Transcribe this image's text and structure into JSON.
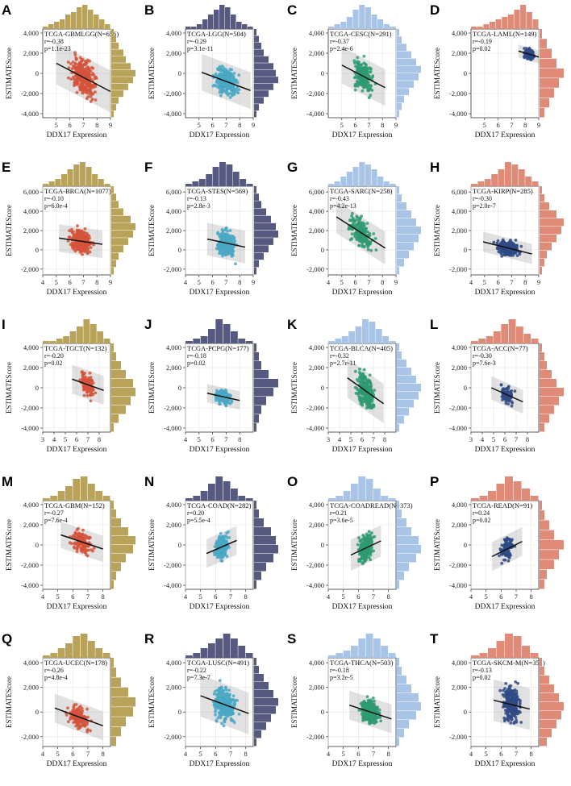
{
  "figure": {
    "xlabel": "DDX17 Expression",
    "ylabel": "ESTIMATEScore"
  },
  "chart_data": [
    {
      "type": "scatter",
      "panel": "A",
      "title": "TCGA-GBMLGG(N=656)",
      "r": "r=-0.38",
      "p": "p=1.1e-23",
      "xlim": [
        4,
        9
      ],
      "xticks": [
        5,
        6,
        7,
        8,
        9
      ],
      "ylim": [
        -4400,
        4400
      ],
      "yticks": [
        -4000,
        -2000,
        0,
        2000,
        4000
      ],
      "x_center": 7,
      "x_spread": 1.0,
      "y_center": -400,
      "y_spread": 1600,
      "slope": -700,
      "n_points": 300,
      "color": "#d4533b",
      "hist_color": "#b9a35a",
      "hist_x": [
        1,
        2,
        3,
        4,
        6,
        7,
        9,
        10,
        8,
        6,
        4,
        2
      ],
      "hist_y": [
        1,
        2,
        3,
        5,
        6,
        8,
        10,
        9,
        7,
        5,
        3,
        2,
        1
      ]
    },
    {
      "type": "scatter",
      "panel": "B",
      "title": "TCGA-LGG(N=504)",
      "r": "r=-0.29",
      "p": "p=3.1e-11",
      "xlim": [
        4,
        9
      ],
      "xticks": [
        5,
        6,
        7,
        8,
        9
      ],
      "ylim": [
        -4400,
        4400
      ],
      "yticks": [
        -4000,
        -2000,
        0,
        2000,
        4000
      ],
      "x_center": 7,
      "x_spread": 0.9,
      "y_center": -800,
      "y_spread": 1400,
      "slope": -500,
      "n_points": 250,
      "color": "#4aa8c4",
      "hist_color": "#575a80",
      "hist_x": [
        1,
        1,
        2,
        4,
        6,
        8,
        10,
        9,
        6,
        3,
        2,
        1
      ],
      "hist_y": [
        1,
        2,
        3,
        4,
        6,
        8,
        9,
        10,
        8,
        6,
        4,
        2,
        1
      ]
    },
    {
      "type": "scatter",
      "panel": "C",
      "title": "TCGA-CESC(N=291)",
      "r": "r=-0.37",
      "p": "p=2.4e-6",
      "xlim": [
        4,
        9
      ],
      "xticks": [
        5,
        6,
        7,
        8,
        9
      ],
      "ylim": [
        -4400,
        4400
      ],
      "yticks": [
        -4000,
        -2000,
        0,
        2000,
        4000
      ],
      "x_center": 6.6,
      "x_spread": 0.8,
      "y_center": -300,
      "y_spread": 1400,
      "slope": -700,
      "n_points": 200,
      "color": "#2e9a72",
      "hist_color": "#a8c4e6",
      "hist_x": [
        1,
        2,
        3,
        5,
        8,
        10,
        9,
        6,
        4,
        2,
        1
      ],
      "hist_y": [
        1,
        2,
        4,
        6,
        8,
        10,
        9,
        7,
        5,
        3,
        2,
        1
      ]
    },
    {
      "type": "scatter",
      "panel": "D",
      "title": "TCGA-LAML(N=149)",
      "r": "r=-0.19",
      "p": "p=0.02",
      "xlim": [
        4,
        9
      ],
      "xticks": [
        5,
        6,
        7,
        8,
        9
      ],
      "ylim": [
        -4400,
        4400
      ],
      "yticks": [
        -4000,
        -2000,
        0,
        2000,
        4000
      ],
      "x_center": 8.3,
      "x_spread": 0.4,
      "y_center": 1900,
      "y_spread": 500,
      "slope": -400,
      "n_points": 130,
      "color": "#2f4a85",
      "hist_color": "#e08a78",
      "hist_x": [
        1,
        1,
        2,
        3,
        4,
        5,
        6,
        8,
        10,
        7,
        4
      ],
      "hist_y": [
        1,
        3,
        5,
        7,
        10,
        8,
        6,
        4,
        2
      ]
    },
    {
      "type": "scatter",
      "panel": "E",
      "title": "TCGA-BRCA(N=1077)",
      "r": "r=-0.10",
      "p": "p=6.0e-4",
      "xlim": [
        4,
        9
      ],
      "xticks": [
        4,
        5,
        6,
        7,
        8,
        9
      ],
      "ylim": [
        -2600,
        6600
      ],
      "yticks": [
        -2000,
        0,
        2000,
        4000,
        6000
      ],
      "x_center": 6.8,
      "x_spread": 0.8,
      "y_center": 900,
      "y_spread": 1100,
      "slope": -200,
      "n_points": 380,
      "color": "#d4533b",
      "hist_color": "#b9a35a",
      "hist_x": [
        1,
        2,
        3,
        5,
        7,
        9,
        10,
        8,
        5,
        3,
        1
      ],
      "hist_y": [
        1,
        2,
        3,
        5,
        8,
        10,
        9,
        7,
        5,
        3,
        2,
        1
      ]
    },
    {
      "type": "scatter",
      "panel": "F",
      "title": "TCGA-STES(N=569)",
      "r": "r=-0.13",
      "p": "p=2.8e-3",
      "xlim": [
        4,
        9
      ],
      "xticks": [
        4,
        5,
        6,
        7,
        8,
        9
      ],
      "ylim": [
        -2600,
        6600
      ],
      "yticks": [
        -2000,
        0,
        2000,
        4000,
        6000
      ],
      "x_center": 7,
      "x_spread": 0.7,
      "y_center": 700,
      "y_spread": 1300,
      "slope": -300,
      "n_points": 280,
      "color": "#4aa8c4",
      "hist_color": "#575a80",
      "hist_x": [
        1,
        2,
        3,
        5,
        8,
        10,
        9,
        6,
        3,
        1
      ],
      "hist_y": [
        1,
        2,
        3,
        5,
        7,
        9,
        10,
        8,
        6,
        4,
        2,
        1
      ]
    },
    {
      "type": "scatter",
      "panel": "G",
      "title": "TCGA-SARC(N=258)",
      "r": "r=-0.43",
      "p": "p=4.2e-13",
      "xlim": [
        4,
        9
      ],
      "xticks": [
        4,
        5,
        6,
        7,
        8,
        9
      ],
      "ylim": [
        -2600,
        6600
      ],
      "yticks": [
        -2000,
        0,
        2000,
        4000,
        6000
      ],
      "x_center": 6.4,
      "x_spread": 0.9,
      "y_center": 1800,
      "y_spread": 1300,
      "slope": -900,
      "n_points": 200,
      "color": "#2e9a72",
      "hist_color": "#a8c4e6",
      "hist_x": [
        1,
        2,
        4,
        6,
        8,
        10,
        9,
        7,
        4,
        2,
        1
      ],
      "hist_y": [
        1,
        2,
        4,
        6,
        8,
        10,
        9,
        7,
        5,
        3,
        1
      ]
    },
    {
      "type": "scatter",
      "panel": "H",
      "title": "TCGA-KIRP(N=285)",
      "r": "r=-0.30",
      "p": "p=2.0e-7",
      "xlim": [
        4,
        9
      ],
      "xticks": [
        4,
        5,
        6,
        7,
        8,
        9
      ],
      "ylim": [
        -2600,
        6600
      ],
      "yticks": [
        -2000,
        0,
        2000,
        4000,
        6000
      ],
      "x_center": 6.7,
      "x_spread": 0.9,
      "y_center": 200,
      "y_spread": 800,
      "slope": -350,
      "n_points": 220,
      "color": "#2f4a85",
      "hist_color": "#e08a78",
      "hist_x": [
        1,
        2,
        3,
        5,
        7,
        10,
        9,
        7,
        4,
        2
      ],
      "hist_y": [
        1,
        2,
        4,
        7,
        10,
        9,
        7,
        5,
        3,
        2,
        1
      ]
    },
    {
      "type": "scatter",
      "panel": "I",
      "title": "TCGA-TGCT(N=132)",
      "r": "r=-0.20",
      "p": "p=0.02",
      "xlim": [
        3,
        9
      ],
      "xticks": [
        3,
        4,
        5,
        6,
        7,
        8
      ],
      "ylim": [
        -4400,
        4400
      ],
      "yticks": [
        -4000,
        -2000,
        0,
        2000,
        4000
      ],
      "x_center": 7,
      "x_spread": 0.7,
      "y_center": 300,
      "y_spread": 1100,
      "slope": -400,
      "n_points": 120,
      "color": "#d4533b",
      "hist_color": "#b9a35a",
      "hist_x": [
        1,
        1,
        2,
        3,
        5,
        7,
        10,
        8,
        5,
        2
      ],
      "hist_y": [
        1,
        2,
        4,
        6,
        9,
        10,
        8,
        6,
        3,
        1
      ]
    },
    {
      "type": "scatter",
      "panel": "J",
      "title": "TCGA-PCPG(N=177)",
      "r": "r=-0.18",
      "p": "p=0.02",
      "xlim": [
        4,
        9
      ],
      "xticks": [
        4,
        5,
        6,
        7,
        8
      ],
      "ylim": [
        -4400,
        4400
      ],
      "yticks": [
        -4000,
        -2000,
        0,
        2000,
        4000
      ],
      "x_center": 6.8,
      "x_spread": 0.6,
      "y_center": -900,
      "y_spread": 700,
      "slope": -300,
      "n_points": 150,
      "color": "#4aa8c4",
      "hist_color": "#575a80",
      "hist_x": [
        1,
        2,
        3,
        6,
        10,
        8,
        5,
        2,
        1
      ],
      "hist_y": [
        1,
        2,
        3,
        6,
        10,
        8,
        5,
        3,
        2,
        1
      ]
    },
    {
      "type": "scatter",
      "panel": "K",
      "title": "TCGA-BLCA(N=405)",
      "r": "r=-0.32",
      "p": "p=2.7e-11",
      "xlim": [
        3,
        9
      ],
      "xticks": [
        3,
        4,
        5,
        6,
        7,
        8
      ],
      "ylim": [
        -4400,
        4400
      ],
      "yticks": [
        -4000,
        -2000,
        0,
        2000,
        4000
      ],
      "x_center": 6.3,
      "x_spread": 0.8,
      "y_center": -300,
      "y_spread": 1500,
      "slope": -800,
      "n_points": 260,
      "color": "#2e9a72",
      "hist_color": "#a8c4e6",
      "hist_x": [
        1,
        2,
        3,
        5,
        7,
        10,
        9,
        6,
        3,
        1
      ],
      "hist_y": [
        1,
        2,
        4,
        6,
        8,
        10,
        9,
        7,
        5,
        3,
        1
      ]
    },
    {
      "type": "scatter",
      "panel": "L",
      "title": "TCGA-ACC(N=77)",
      "r": "r=-0.30",
      "p": "p=7.6e-3",
      "xlim": [
        3,
        9
      ],
      "xticks": [
        3,
        4,
        5,
        6,
        7,
        8
      ],
      "ylim": [
        -4400,
        4400
      ],
      "yticks": [
        -4000,
        -2000,
        0,
        2000,
        4000
      ],
      "x_center": 6.2,
      "x_spread": 0.7,
      "y_center": -700,
      "y_spread": 900,
      "slope": -500,
      "n_points": 75,
      "color": "#2f4a85",
      "hist_color": "#e08a78",
      "hist_x": [
        1,
        2,
        3,
        5,
        8,
        10,
        7,
        4,
        2
      ],
      "hist_y": [
        1,
        2,
        3,
        5,
        7,
        10,
        8,
        6,
        4,
        2
      ]
    },
    {
      "type": "scatter",
      "panel": "M",
      "title": "TCGA-GBM(N=152)",
      "r": "r=-0.27",
      "p": "p=7.6e-4",
      "xlim": [
        4,
        8.5
      ],
      "xticks": [
        4,
        5,
        6,
        7,
        8
      ],
      "ylim": [
        -4400,
        4400
      ],
      "yticks": [
        -4000,
        -2000,
        0,
        2000,
        4000
      ],
      "x_center": 6.6,
      "x_spread": 0.7,
      "y_center": 300,
      "y_spread": 1000,
      "slope": -500,
      "n_points": 140,
      "color": "#d4533b",
      "hist_color": "#b9a35a",
      "hist_x": [
        1,
        2,
        4,
        6,
        9,
        10,
        7,
        4,
        2
      ],
      "hist_y": [
        1,
        2,
        4,
        7,
        10,
        9,
        6,
        4,
        2,
        1
      ]
    },
    {
      "type": "scatter",
      "panel": "N",
      "title": "TCGA-COAD(N=282)",
      "r": "r=0.20",
      "p": "p=5.5e-4",
      "xlim": [
        4,
        8.5
      ],
      "xticks": [
        4,
        5,
        6,
        7,
        8
      ],
      "ylim": [
        -4400,
        4400
      ],
      "yticks": [
        -4000,
        -2000,
        0,
        2000,
        4000
      ],
      "x_center": 6.4,
      "x_spread": 0.5,
      "y_center": -200,
      "y_spread": 1100,
      "slope": 650,
      "n_points": 220,
      "color": "#4aa8c4",
      "hist_color": "#575a80",
      "hist_x": [
        1,
        2,
        4,
        7,
        10,
        8,
        5,
        2,
        1
      ],
      "hist_y": [
        1,
        2,
        4,
        7,
        9,
        10,
        8,
        5,
        3,
        1
      ]
    },
    {
      "type": "scatter",
      "panel": "O",
      "title": "TCGA-COADREAD(N=373)",
      "r": "r=0.21",
      "p": "p=3.6e-5",
      "xlim": [
        4,
        8.5
      ],
      "xticks": [
        4,
        5,
        6,
        7,
        8
      ],
      "ylim": [
        -4400,
        4400
      ],
      "yticks": [
        -4000,
        -2000,
        0,
        2000,
        4000
      ],
      "x_center": 6.5,
      "x_spread": 0.5,
      "y_center": -300,
      "y_spread": 1200,
      "slope": 700,
      "n_points": 260,
      "color": "#2e9a72",
      "hist_color": "#a8c4e6",
      "hist_x": [
        1,
        2,
        4,
        7,
        10,
        9,
        5,
        2,
        1
      ],
      "hist_y": [
        1,
        2,
        4,
        6,
        9,
        10,
        8,
        5,
        3,
        1
      ]
    },
    {
      "type": "scatter",
      "panel": "P",
      "title": "TCGA-READ(N=91)",
      "r": "r=0.24",
      "p": "p=0.02",
      "xlim": [
        4,
        8.5
      ],
      "xticks": [
        4,
        5,
        6,
        7,
        8
      ],
      "ylim": [
        -4400,
        4400
      ],
      "yticks": [
        -4000,
        -2000,
        0,
        2000,
        4000
      ],
      "x_center": 6.4,
      "x_spread": 0.5,
      "y_center": -400,
      "y_spread": 1100,
      "slope": 750,
      "n_points": 90,
      "color": "#2f4a85",
      "hist_color": "#e08a78",
      "hist_x": [
        1,
        2,
        4,
        7,
        10,
        8,
        5,
        2
      ],
      "hist_y": [
        1,
        2,
        4,
        6,
        10,
        8,
        6,
        3,
        2
      ]
    },
    {
      "type": "scatter",
      "panel": "Q",
      "title": "TCGA-UCEC(N=178)",
      "r": "r=-0.26",
      "p": "p=4.8e-4",
      "xlim": [
        4,
        8.5
      ],
      "xticks": [
        4,
        5,
        6,
        7,
        8
      ],
      "ylim": [
        -2800,
        4400
      ],
      "yticks": [
        -2000,
        0,
        2000,
        4000
      ],
      "x_center": 6.4,
      "x_spread": 0.8,
      "y_center": -400,
      "y_spread": 900,
      "slope": -450,
      "n_points": 160,
      "color": "#d4533b",
      "hist_color": "#b9a35a",
      "hist_x": [
        1,
        2,
        4,
        6,
        9,
        10,
        7,
        4,
        2
      ],
      "hist_y": [
        1,
        2,
        4,
        7,
        10,
        9,
        6,
        4,
        2
      ]
    },
    {
      "type": "scatter",
      "panel": "R",
      "title": "TCGA-LUSC(N=491)",
      "r": "r=-0.22",
      "p": "p=7.3e-7",
      "xlim": [
        4,
        8.5
      ],
      "xticks": [
        4,
        5,
        6,
        7,
        8
      ],
      "ylim": [
        -2800,
        4400
      ],
      "yticks": [
        -2000,
        0,
        2000,
        4000
      ],
      "x_center": 6.6,
      "x_spread": 0.8,
      "y_center": 600,
      "y_spread": 1300,
      "slope": -450,
      "n_points": 280,
      "color": "#4aa8c4",
      "hist_color": "#575a80",
      "hist_x": [
        1,
        2,
        4,
        6,
        8,
        10,
        8,
        5,
        2
      ],
      "hist_y": [
        1,
        2,
        4,
        6,
        8,
        10,
        9,
        7,
        5,
        3,
        1
      ]
    },
    {
      "type": "scatter",
      "panel": "S",
      "title": "TCGA-THCA(N=503)",
      "r": "r=-0.18",
      "p": "p=3.2e-5",
      "xlim": [
        4,
        8.5
      ],
      "xticks": [
        4,
        5,
        6,
        7,
        8
      ],
      "ylim": [
        -2800,
        4400
      ],
      "yticks": [
        -2000,
        0,
        2000,
        4000
      ],
      "x_center": 6.8,
      "x_spread": 0.7,
      "y_center": 0,
      "y_spread": 900,
      "slope": -400,
      "n_points": 300,
      "color": "#2e9a72",
      "hist_color": "#a8c4e6",
      "hist_x": [
        1,
        2,
        3,
        5,
        8,
        10,
        8,
        5,
        2
      ],
      "hist_y": [
        1,
        2,
        4,
        6,
        9,
        10,
        8,
        5,
        3,
        1
      ]
    },
    {
      "type": "scatter",
      "panel": "T",
      "title": "TCGA-SKCM-M(N=351)",
      "r": "r=-0.13",
      "p": "p=0.02",
      "xlim": [
        4,
        8.5
      ],
      "xticks": [
        4,
        5,
        6,
        7,
        8
      ],
      "ylim": [
        -2800,
        4400
      ],
      "yticks": [
        -2000,
        0,
        2000,
        4000
      ],
      "x_center": 6.7,
      "x_spread": 0.6,
      "y_center": 600,
      "y_spread": 1300,
      "slope": -300,
      "n_points": 260,
      "color": "#2f4a85",
      "hist_color": "#e08a78",
      "hist_x": [
        1,
        2,
        4,
        7,
        10,
        9,
        5,
        2
      ],
      "hist_y": [
        1,
        2,
        4,
        6,
        8,
        10,
        9,
        7,
        5,
        3
      ]
    }
  ]
}
